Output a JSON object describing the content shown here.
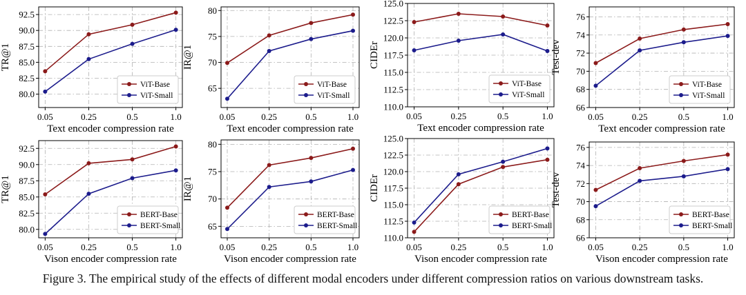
{
  "figure": {
    "caption": "Figure 3.  The empirical study of the effects of different modal encoders under different compression ratios on various downstream tasks."
  },
  "colors": {
    "base": "#8b1a1a",
    "small": "#1c1c8c"
  },
  "chart_data": [
    {
      "type": "line",
      "xlabel": "Text encoder compression rate",
      "ylabel": "TR@1",
      "categories": [
        "0.05",
        "0.25",
        "0.5",
        "1.0"
      ],
      "ylim": [
        77.9,
        93.7
      ],
      "yticks": [
        "80.0",
        "82.5",
        "85.0",
        "87.5",
        "90.0",
        "92.5"
      ],
      "grid": true,
      "legend": "lower-right",
      "series": [
        {
          "name": "ViT-Base",
          "values": [
            83.6,
            89.4,
            90.9,
            92.8
          ]
        },
        {
          "name": "ViT-Small",
          "values": [
            80.4,
            85.5,
            87.9,
            90.1
          ]
        }
      ]
    },
    {
      "type": "line",
      "xlabel": "Text encoder compression rate",
      "ylabel": "IR@1",
      "categories": [
        "0.05",
        "0.25",
        "0.5",
        "1.0"
      ],
      "ylim": [
        61.3,
        80.7
      ],
      "yticks": [
        "65",
        "70",
        "75",
        "80"
      ],
      "grid": true,
      "legend": "lower-right",
      "series": [
        {
          "name": "ViT-Base",
          "values": [
            69.9,
            75.2,
            77.6,
            79.2
          ]
        },
        {
          "name": "ViT-Small",
          "values": [
            63.0,
            72.2,
            74.5,
            76.1
          ]
        }
      ]
    },
    {
      "type": "line",
      "xlabel": "Text encoder compression rate",
      "ylabel": "CIDEr",
      "categories": [
        "0.05",
        "0.25",
        "0.5",
        "1.0"
      ],
      "ylim": [
        110.0,
        125.0
      ],
      "yticks": [
        "110.0",
        "112.5",
        "115.0",
        "117.5",
        "120.0",
        "122.5",
        "125.0"
      ],
      "grid": true,
      "legend": "lower-right",
      "series": [
        {
          "name": "ViT-Base",
          "values": [
            122.3,
            123.5,
            123.1,
            121.8
          ]
        },
        {
          "name": "ViT-Small",
          "values": [
            118.2,
            119.6,
            120.5,
            118.1
          ]
        }
      ]
    },
    {
      "type": "line",
      "xlabel": "Text encoder compression rate",
      "ylabel": "Test-dev",
      "categories": [
        "0.05",
        "0.25",
        "0.5",
        "1.0"
      ],
      "ylim": [
        66.0,
        77.1
      ],
      "yticks": [
        "66",
        "68",
        "70",
        "72",
        "74",
        "76"
      ],
      "grid": true,
      "legend": "lower-right",
      "series": [
        {
          "name": "ViT-Base",
          "values": [
            70.9,
            73.6,
            74.6,
            75.2
          ]
        },
        {
          "name": "ViT-Small",
          "values": [
            68.4,
            72.3,
            73.2,
            73.9
          ]
        }
      ]
    },
    {
      "type": "line",
      "xlabel": "Vison encoder compression rate",
      "ylabel": "TR@1",
      "categories": [
        "0.05",
        "0.25",
        "0.5",
        "1.0"
      ],
      "ylim": [
        78.7,
        93.7
      ],
      "yticks": [
        "80.0",
        "82.5",
        "85.0",
        "87.5",
        "90.0",
        "92.5"
      ],
      "grid": true,
      "legend": "lower-right",
      "series": [
        {
          "name": "BERT-Base",
          "values": [
            85.4,
            90.2,
            90.8,
            92.8
          ]
        },
        {
          "name": "BERT-Small",
          "values": [
            79.3,
            85.5,
            87.9,
            89.1
          ]
        }
      ]
    },
    {
      "type": "line",
      "xlabel": "Vison encoder compression rate",
      "ylabel": "IR@1",
      "categories": [
        "0.05",
        "0.25",
        "0.5",
        "1.0"
      ],
      "ylim": [
        62.9,
        80.8
      ],
      "yticks": [
        "65",
        "70",
        "75",
        "80"
      ],
      "grid": true,
      "legend": "lower-right",
      "series": [
        {
          "name": "BERT-Base",
          "values": [
            68.4,
            76.2,
            77.5,
            79.2
          ]
        },
        {
          "name": "BERT-Small",
          "values": [
            64.5,
            72.2,
            73.2,
            75.3
          ]
        }
      ]
    },
    {
      "type": "line",
      "xlabel": "Vison encoder compression rate",
      "ylabel": "CIDEr",
      "categories": [
        "0.05",
        "0.25",
        "0.5",
        "1.0"
      ],
      "ylim": [
        110.0,
        125.0
      ],
      "yticks": [
        "110.0",
        "112.5",
        "115.0",
        "117.5",
        "120.0",
        "122.5",
        "125.0"
      ],
      "grid": true,
      "legend": "lower-right",
      "series": [
        {
          "name": "BERT-Base",
          "values": [
            110.9,
            118.1,
            120.7,
            121.8
          ]
        },
        {
          "name": "BERT-Small",
          "values": [
            112.3,
            119.6,
            121.5,
            123.5
          ]
        }
      ]
    },
    {
      "type": "line",
      "xlabel": "Vison encoder compression rate",
      "ylabel": "Test-dev",
      "categories": [
        "0.05",
        "0.25",
        "0.5",
        "1.0"
      ],
      "ylim": [
        66.0,
        76.6
      ],
      "yticks": [
        "66",
        "68",
        "70",
        "72",
        "74",
        "76"
      ],
      "grid": true,
      "legend": "lower-right",
      "series": [
        {
          "name": "BERT-Base",
          "values": [
            71.3,
            73.7,
            74.5,
            75.2
          ]
        },
        {
          "name": "BERT-Small",
          "values": [
            69.5,
            72.3,
            72.8,
            73.6
          ]
        }
      ]
    }
  ]
}
